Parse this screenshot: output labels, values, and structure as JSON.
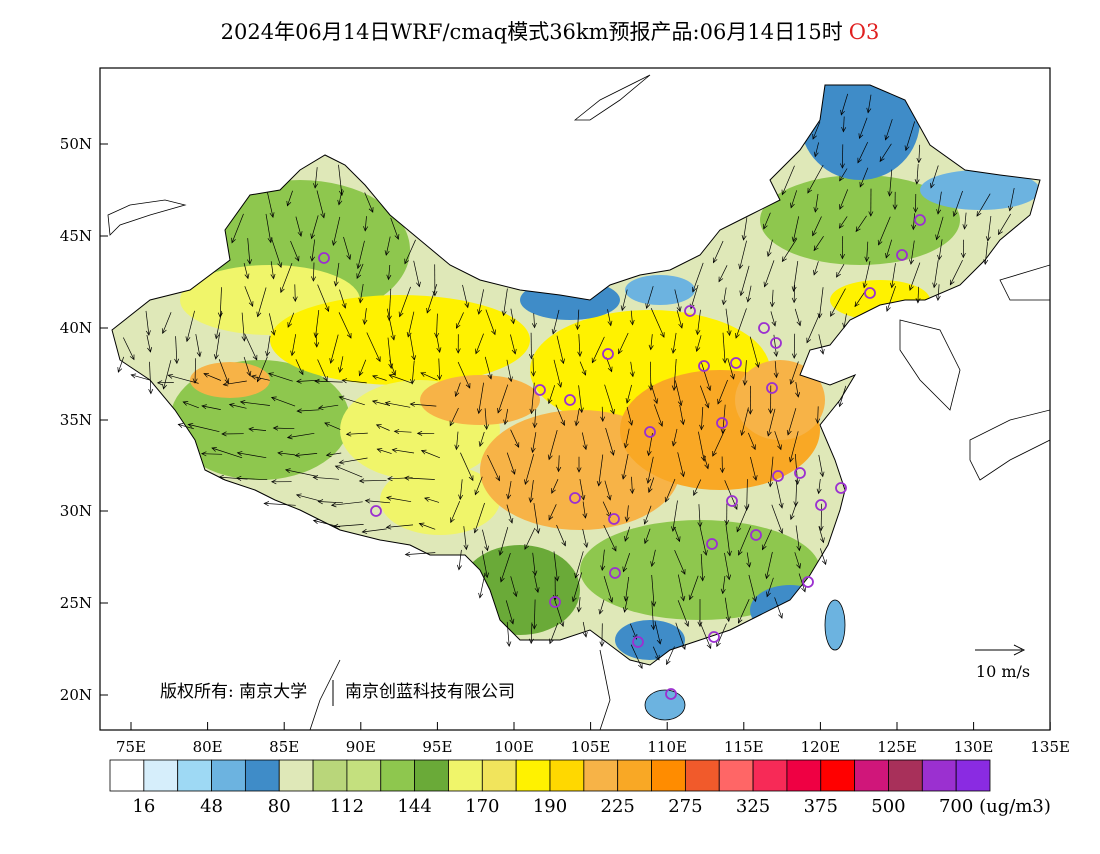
{
  "title": {
    "main": "2024年06月14日WRF/cmaq模式36km预报产品:06月14日15时",
    "pollutant": "O3"
  },
  "axes": {
    "lat_labels": [
      "50N",
      "45N",
      "40N",
      "35N",
      "30N",
      "25N",
      "20N"
    ],
    "lon_labels": [
      "75E",
      "80E",
      "85E",
      "90E",
      "95E",
      "100E",
      "105E",
      "110E",
      "115E",
      "120E",
      "125E",
      "130E",
      "135E"
    ]
  },
  "legend": {
    "colors": [
      "#ffffff",
      "#d6eefb",
      "#9ed9f4",
      "#6cb3e0",
      "#3f8cc8",
      "#dfe8b8",
      "#b9d67a",
      "#c4e07e",
      "#8ec74e",
      "#6aaa38",
      "#f0f56a",
      "#f1e45c",
      "#fff200",
      "#ffd800",
      "#f7b347",
      "#f9a825",
      "#ff8c00",
      "#f15a2b",
      "#ff6666",
      "#f72a57",
      "#ef0043",
      "#ff0000",
      "#d0167a",
      "#a8305a",
      "#9b30d0",
      "#8a2be2"
    ],
    "labels": [
      "16",
      "48",
      "80",
      "112",
      "144",
      "170",
      "190",
      "225",
      "275",
      "325",
      "375",
      "500",
      "700"
    ],
    "unit": "(ug/m3)"
  },
  "wind_scale_label": "10 m/s",
  "copyright": "版权所有: 南京大学",
  "company": "南京创蓝科技有限公司",
  "palette": {
    "blue": "#3f8cc8",
    "lightgreen": "#dfe8b8",
    "green": "#8ec74e",
    "darkgreen": "#6aaa38",
    "yellow": "#fff200",
    "lightyellow": "#f0f56a",
    "orange": "#f7b347",
    "site_marker": "#9b30d0"
  }
}
